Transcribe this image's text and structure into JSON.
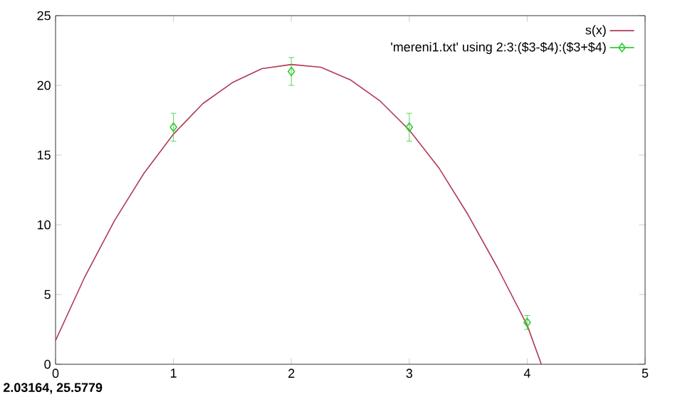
{
  "chart_data": {
    "type": "scatter",
    "xlim": [
      0,
      5
    ],
    "ylim": [
      0,
      25
    ],
    "xticks": [
      0,
      1,
      2,
      3,
      4,
      5
    ],
    "yticks": [
      0,
      5,
      10,
      15,
      20,
      25
    ],
    "grid": false,
    "legend": "top right",
    "annotations": [
      "2.03164,  25.5779"
    ],
    "series": [
      {
        "name": "s(x)",
        "type": "line",
        "color": "#b03a55",
        "marker": "none",
        "x": [
          0,
          0.25,
          0.5,
          0.75,
          1,
          1.25,
          1.5,
          1.75,
          2,
          2.25,
          2.5,
          2.75,
          3,
          3.25,
          3.5,
          3.75,
          4,
          4.12
        ],
        "values": [
          1.7,
          6.3,
          10.3,
          13.7,
          16.5,
          18.7,
          20.2,
          21.2,
          21.5,
          21.3,
          20.4,
          18.9,
          16.8,
          14.1,
          10.7,
          6.9,
          2.8,
          0
        ]
      },
      {
        "name": "'mereni1.txt' using 2:3:($3-$4):($3+$4)",
        "color": "#33cc33",
        "marker": "diamond",
        "x": [
          1,
          2,
          3,
          4
        ],
        "values": [
          17,
          21,
          17,
          3
        ],
        "errors": [
          1,
          1,
          1,
          0.5
        ]
      }
    ]
  }
}
